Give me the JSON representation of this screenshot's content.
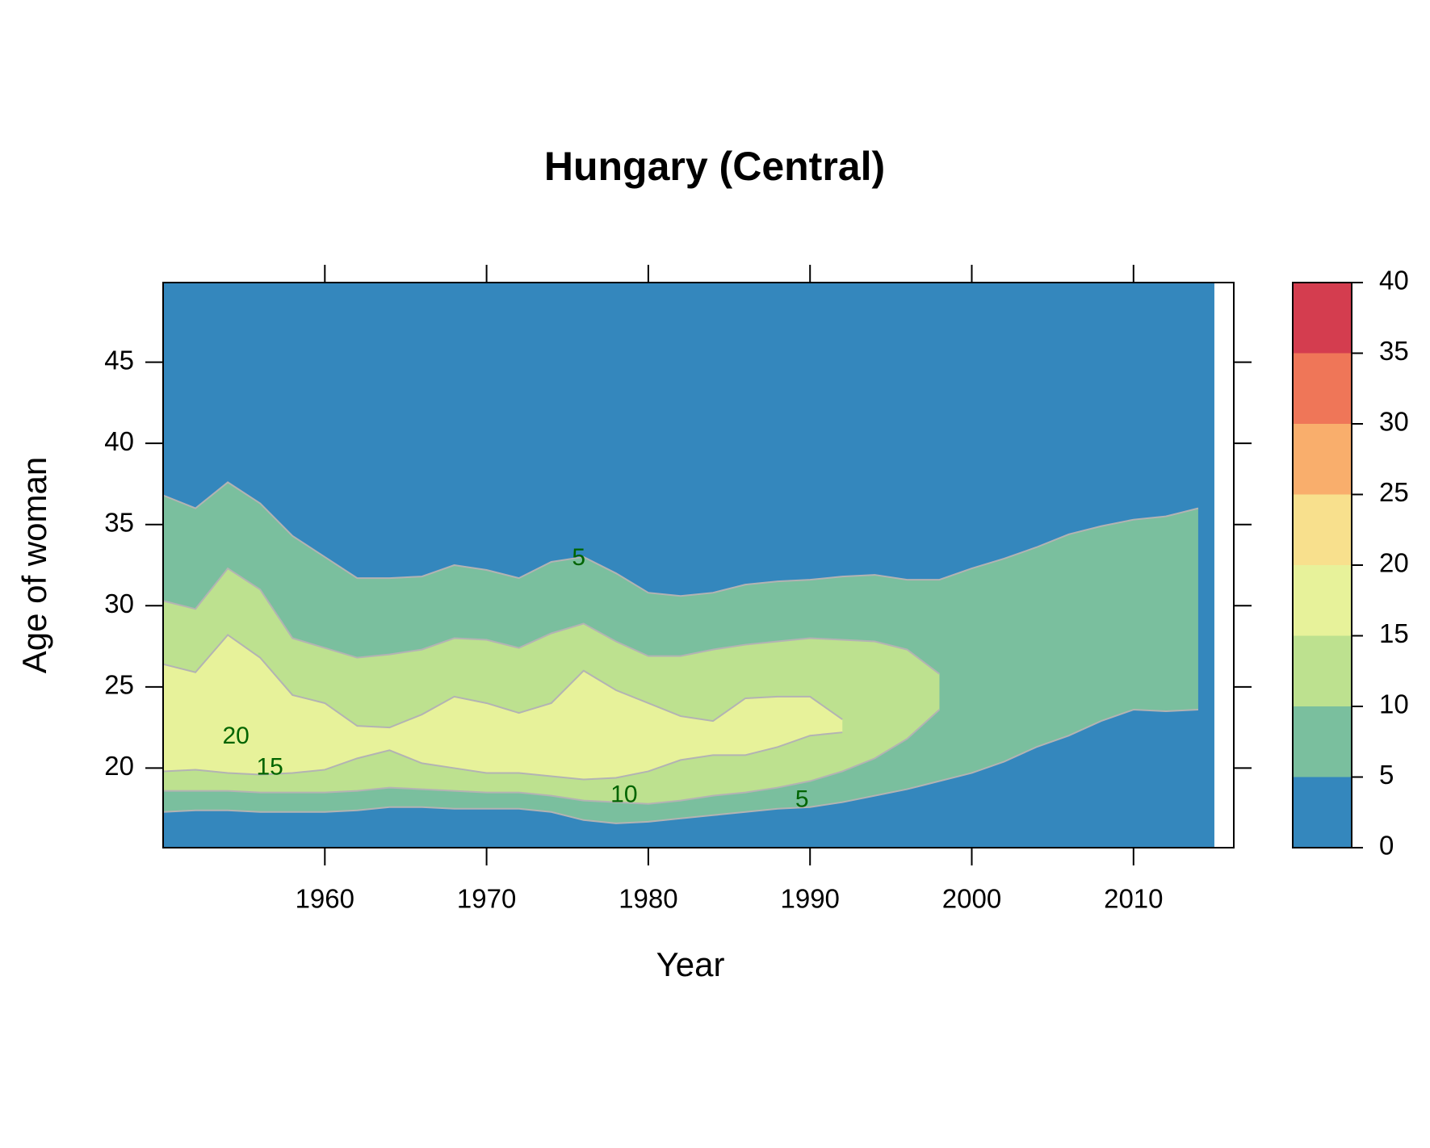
{
  "chart_data": {
    "type": "contour",
    "title": "Hungary (Central)",
    "x_label": "Year",
    "y_label": "Age of woman",
    "xlim": [
      1950,
      2016.2
    ],
    "ylim": [
      15.1,
      49.9
    ],
    "xticks": [
      1960,
      1970,
      1980,
      1990,
      2000,
      2010
    ],
    "yticks": [
      20,
      25,
      30,
      35,
      40,
      45
    ],
    "x": [
      1950,
      1952,
      1954,
      1956,
      1958,
      1960,
      1962,
      1964,
      1966,
      1968,
      1970,
      1972,
      1974,
      1976,
      1978,
      1980,
      1982,
      1984,
      1986,
      1988,
      1990,
      1992,
      1994,
      1996,
      1998,
      2000,
      2002,
      2004,
      2006,
      2008,
      2010,
      2012,
      2014
    ],
    "contour_color": "#b3b3b3",
    "label_color": "#006400",
    "contours": [
      {
        "level": 5,
        "upper": [
          36.8,
          36.0,
          37.6,
          36.3,
          34.3,
          33.0,
          31.7,
          31.7,
          31.8,
          32.5,
          32.2,
          31.7,
          32.7,
          33.0,
          32.0,
          30.8,
          30.6,
          30.8,
          31.3,
          31.5,
          31.6,
          31.8,
          31.9,
          31.6,
          31.6,
          32.3,
          32.9,
          33.6,
          34.4,
          34.9,
          35.3,
          35.5,
          36.0
        ],
        "lower": [
          17.3,
          17.4,
          17.4,
          17.3,
          17.3,
          17.3,
          17.4,
          17.6,
          17.6,
          17.5,
          17.5,
          17.5,
          17.3,
          16.8,
          16.6,
          16.7,
          16.9,
          17.1,
          17.3,
          17.5,
          17.6,
          17.9,
          18.3,
          18.7,
          19.2,
          19.7,
          20.4,
          21.3,
          22.0,
          22.9,
          23.6,
          23.5,
          23.6
        ]
      },
      {
        "level": 10,
        "upper": [
          30.3,
          29.8,
          32.3,
          31.0,
          28.0,
          27.4,
          26.8,
          27.0,
          27.3,
          28.0,
          27.9,
          27.4,
          28.3,
          28.9,
          27.8,
          26.9,
          26.9,
          27.3,
          27.6,
          27.8,
          28.0,
          27.9,
          27.8,
          27.3,
          25.8,
          null,
          null,
          null,
          null,
          null,
          null,
          null,
          null
        ],
        "lower": [
          18.6,
          18.6,
          18.6,
          18.5,
          18.5,
          18.5,
          18.6,
          18.8,
          18.7,
          18.6,
          18.5,
          18.5,
          18.3,
          18.0,
          17.9,
          17.8,
          18.0,
          18.3,
          18.5,
          18.8,
          19.2,
          19.8,
          20.6,
          21.8,
          23.6,
          null,
          null,
          null,
          null,
          null,
          null,
          null,
          null
        ]
      },
      {
        "level": 15,
        "upper": [
          26.4,
          25.9,
          28.2,
          26.8,
          24.5,
          24.0,
          22.6,
          22.5,
          23.3,
          24.4,
          24.0,
          23.4,
          24.0,
          26.0,
          24.8,
          24.0,
          23.2,
          22.9,
          24.3,
          24.4,
          24.4,
          23.0,
          null,
          null,
          null,
          null,
          null,
          null,
          null,
          null,
          null,
          null,
          null
        ],
        "lower": [
          19.8,
          19.9,
          19.7,
          19.6,
          19.7,
          19.9,
          20.6,
          21.1,
          20.3,
          20.0,
          19.7,
          19.7,
          19.5,
          19.3,
          19.4,
          19.8,
          20.5,
          20.8,
          20.8,
          21.3,
          22.0,
          22.2,
          null,
          null,
          null,
          null,
          null,
          null,
          null,
          null,
          null,
          null,
          null
        ]
      }
    ],
    "annotations": [
      {
        "text": "5",
        "x": 1975.7,
        "y": 32.9
      },
      {
        "text": "20",
        "x": 1954.5,
        "y": 21.9
      },
      {
        "text": "15",
        "x": 1956.6,
        "y": 20.0
      },
      {
        "text": "10",
        "x": 1978.5,
        "y": 18.3
      },
      {
        "text": "5",
        "x": 1989.5,
        "y": 18.0
      }
    ],
    "colorbar": {
      "levels": [
        0,
        5,
        10,
        15,
        20,
        25,
        30,
        35,
        40
      ],
      "colors": [
        "#3487bd",
        "#7abf9e",
        "#bde18f",
        "#e7f29a",
        "#f8e08d",
        "#f9ae6c",
        "#ef7658",
        "#d43d4f"
      ]
    }
  }
}
